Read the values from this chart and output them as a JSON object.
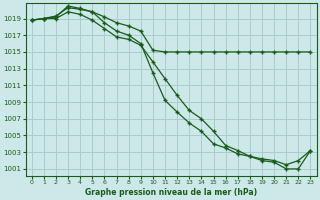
{
  "title": "Graphe pression niveau de la mer (hPa)",
  "background_color": "#cce8e8",
  "grid_color": "#aacccc",
  "line_color": "#1a5c1a",
  "xlim": [
    -0.5,
    23.5
  ],
  "ylim": [
    1000.2,
    1020.8
  ],
  "yticks": [
    1001,
    1003,
    1005,
    1007,
    1009,
    1011,
    1013,
    1015,
    1017,
    1019
  ],
  "xticks": [
    0,
    1,
    2,
    3,
    4,
    5,
    6,
    7,
    8,
    9,
    10,
    11,
    12,
    13,
    14,
    15,
    16,
    17,
    18,
    19,
    20,
    21,
    22,
    23
  ],
  "series": [
    [
      1018.8,
      1019.0,
      1019.3,
      1020.3,
      1020.1,
      1019.8,
      1019.2,
      1018.5,
      1018.1,
      1017.5,
      1015.2,
      1015.0,
      1015.0,
      1015.0,
      1015.0,
      1015.0,
      1015.0,
      1015.0,
      1015.0,
      1015.0,
      1015.0,
      1015.0,
      1015.0,
      1015.0
    ],
    [
      1018.8,
      1019.0,
      1019.0,
      1019.8,
      1019.5,
      1018.8,
      1017.8,
      1016.8,
      1016.5,
      1015.8,
      1013.8,
      1011.8,
      1009.8,
      1008.0,
      1007.0,
      1005.5,
      1003.8,
      1003.2,
      1002.5,
      1002.2,
      1002.0,
      1001.5,
      1002.0,
      1003.2
    ],
    [
      1018.8,
      1019.0,
      1019.2,
      1020.5,
      1020.2,
      1019.8,
      1018.5,
      1017.5,
      1017.0,
      1016.0,
      1012.5,
      1009.2,
      1007.8,
      1006.5,
      1005.5,
      1004.0,
      1003.5,
      1002.8,
      1002.5,
      1002.0,
      1001.8,
      1001.0,
      1001.0,
      1003.2
    ]
  ]
}
